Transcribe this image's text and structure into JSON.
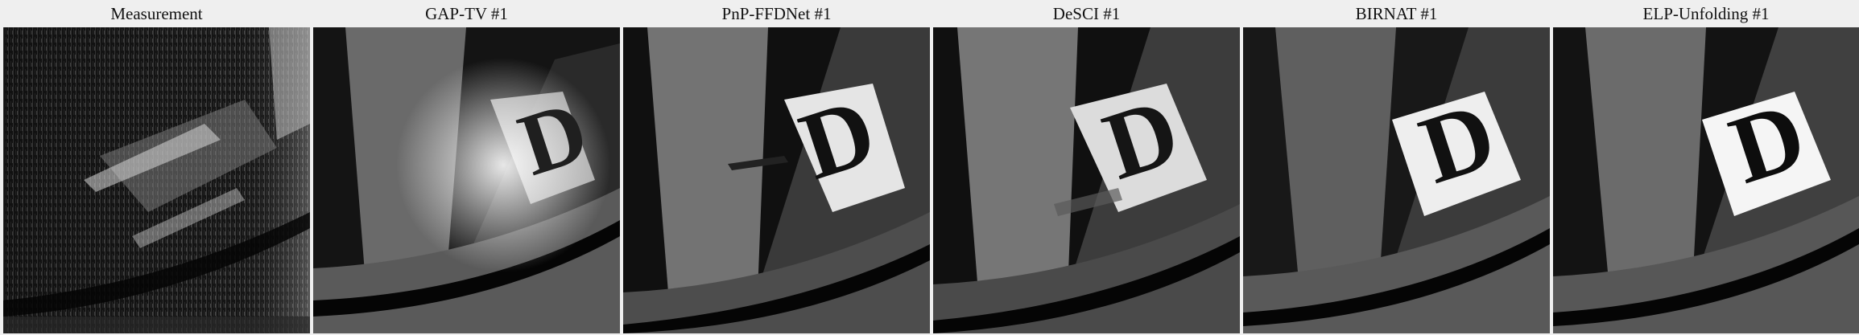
{
  "figure": {
    "panels": [
      {
        "title": "Measurement",
        "kind": "measurement",
        "base_color": "#141414",
        "highlight_color": "#e6e6e6"
      },
      {
        "title": "GAP-TV #1",
        "kind": "reconstruction",
        "base_color": "#1b1b1b",
        "highlight_color": "#f2f2f2"
      },
      {
        "title": "PnP-FFDNet #1",
        "kind": "reconstruction",
        "base_color": "#151515",
        "highlight_color": "#ffffff"
      },
      {
        "title": "DeSCI #1",
        "kind": "reconstruction",
        "base_color": "#161616",
        "highlight_color": "#ffffff"
      },
      {
        "title": "BIRNAT #1",
        "kind": "reconstruction",
        "base_color": "#1a1a1a",
        "highlight_color": "#f7f7f7"
      },
      {
        "title": "ELP-Unfolding #1",
        "kind": "reconstruction",
        "base_color": "#181818",
        "highlight_color": "#ffffff"
      }
    ]
  }
}
